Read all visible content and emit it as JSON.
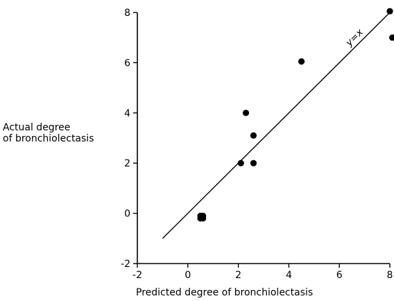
{
  "chart_data": {
    "type": "scatter",
    "title": "",
    "ylabel_lines": [
      "Actual degree",
      "of bronchiolectasis"
    ],
    "xlabel": "Predicted degree of bronchiolectasis",
    "xlim": [
      -2,
      8
    ],
    "ylim": [
      -2,
      8
    ],
    "xticks": [
      "-2",
      "0",
      "2",
      "4",
      "6",
      "8"
    ],
    "yticks": [
      "-2",
      "0",
      "2",
      "4",
      "6",
      "8"
    ],
    "grid": false,
    "points": [
      {
        "x": 0.5,
        "y": -0.1
      },
      {
        "x": 0.6,
        "y": -0.1
      },
      {
        "x": 0.5,
        "y": -0.2
      },
      {
        "x": 0.6,
        "y": -0.2
      },
      {
        "x": 2.1,
        "y": 2.0
      },
      {
        "x": 2.6,
        "y": 2.0
      },
      {
        "x": 2.3,
        "y": 4.0
      },
      {
        "x": 2.6,
        "y": 3.1
      },
      {
        "x": 4.5,
        "y": 6.05
      },
      {
        "x": 8.0,
        "y": 8.05
      },
      {
        "x": 8.1,
        "y": 7.0
      }
    ],
    "reference_line": {
      "label": "y=x",
      "x": [
        -1,
        8
      ],
      "y": [
        -1,
        8
      ]
    }
  }
}
